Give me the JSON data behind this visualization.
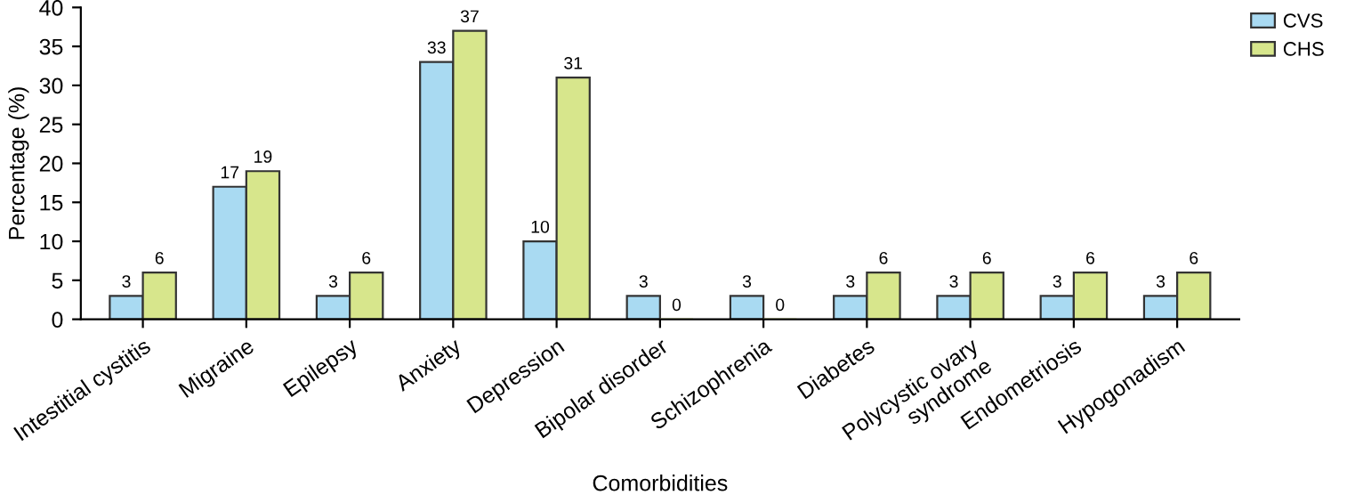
{
  "chart_data": {
    "type": "bar",
    "xlabel": "Comorbidities",
    "ylabel": "Percentage (%)",
    "categories": [
      "Intestitial cystitis",
      "Migraine",
      "Epilepsy",
      "Anxiety",
      "Depression",
      "Bipolar disorder",
      "Schizophrenia",
      "Diabetes",
      "Polycystic ovary\nsyndrome",
      "Endometriosis",
      "Hypogonadism"
    ],
    "series": [
      {
        "name": "CVS",
        "color": "#a9daf2",
        "values": [
          3,
          17,
          3,
          33,
          10,
          3,
          3,
          3,
          3,
          3,
          3
        ]
      },
      {
        "name": "CHS",
        "color": "#d7e68c",
        "values": [
          6,
          19,
          6,
          37,
          31,
          0,
          0,
          6,
          6,
          6,
          6
        ]
      }
    ],
    "ylim": [
      0,
      40
    ],
    "yticks": [
      0,
      5,
      10,
      15,
      20,
      25,
      30,
      35,
      40
    ],
    "data_labels": true,
    "legend": "top right",
    "grid": false
  }
}
